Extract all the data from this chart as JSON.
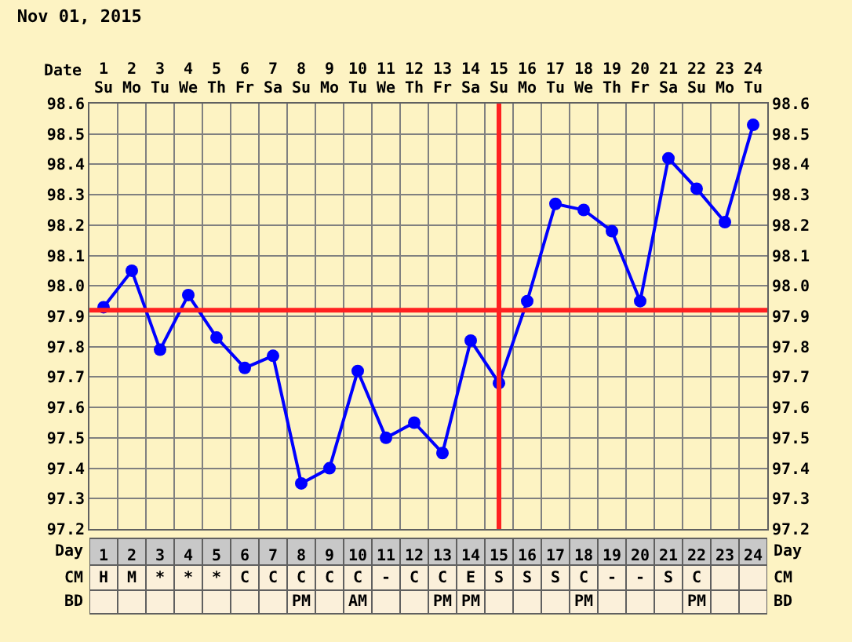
{
  "chart_data": {
    "type": "line",
    "title": "Nov 01, 2015",
    "xlabel": "Day",
    "x2label": "Date",
    "x": [
      1,
      2,
      3,
      4,
      5,
      6,
      7,
      8,
      9,
      10,
      11,
      12,
      13,
      14,
      15,
      16,
      17,
      18,
      19,
      20,
      21,
      22,
      23,
      24
    ],
    "xlim": [
      0.5,
      24.5
    ],
    "xticks": [
      1,
      2,
      3,
      4,
      5,
      6,
      7,
      8,
      9,
      10,
      11,
      12,
      13,
      14,
      15,
      16,
      17,
      18,
      19,
      20,
      21,
      22,
      23,
      24
    ],
    "x2lim": [
      0.5,
      24.5
    ],
    "x2ticks": [
      1,
      2,
      3,
      4,
      5,
      6,
      7,
      8,
      9,
      10,
      11,
      12,
      13,
      14,
      15,
      16,
      17,
      18,
      19,
      20,
      21,
      22,
      23,
      24
    ],
    "series": [
      {
        "color": "#0000ff",
        "values": [
          97.93,
          98.05,
          97.79,
          97.97,
          97.83,
          97.73,
          97.77,
          97.35,
          97.4,
          97.72,
          97.5,
          97.55,
          97.45,
          97.82,
          97.68,
          97.95,
          98.27,
          98.25,
          98.18,
          97.95,
          98.42,
          98.32,
          98.21,
          98.53
        ]
      }
    ],
    "ylim": [
      97.2,
      98.6
    ],
    "yticks": [
      97.2,
      97.3,
      97.4,
      97.5,
      97.6,
      97.7,
      97.8,
      97.9,
      {
        "value": 98,
        "label": "98.0"
      },
      98.1,
      98.2,
      98.3,
      98.4,
      98.5,
      98.6
    ],
    "y2lim": [
      97.2,
      98.6
    ],
    "y2ticks": [
      97.2,
      97.3,
      97.4,
      97.5,
      97.6,
      97.7,
      97.8,
      97.9,
      {
        "value": 98,
        "label": "98.0"
      },
      98.1,
      98.2,
      98.3,
      98.4,
      98.5,
      98.6
    ],
    "grid": true,
    "marker": "circle",
    "line_style": "solid",
    "ref_lines": [
      {
        "axis": "y",
        "value": 97.92,
        "color": "#ff2020"
      },
      {
        "axis": "x",
        "value": 15,
        "color": "#ff2020"
      }
    ],
    "annotations": [
      "Su",
      "Mo",
      "Tu",
      "We",
      "Th",
      "Fr",
      "Sa",
      "Su",
      "Mo",
      "Tu",
      "We",
      "Th",
      "Fr",
      "Sa",
      "Su",
      "Mo",
      "Tu",
      "We",
      "Th",
      "Fr",
      "Sa",
      "Su",
      "Mo",
      "Tu",
      "CM",
      "H",
      "M",
      "*",
      "*",
      "*",
      "C",
      "C",
      "C",
      "C",
      "C",
      "-",
      "C",
      "C",
      "E",
      "S",
      "S",
      "S",
      "C",
      "-",
      "-",
      "S",
      "C",
      null,
      null,
      "BD",
      null,
      null,
      null,
      null,
      null,
      null,
      null,
      "PM",
      null,
      "AM",
      null,
      null,
      "PM",
      "PM",
      null,
      null,
      null,
      "PM",
      null,
      null,
      null,
      "PM",
      null,
      null
    ]
  }
}
